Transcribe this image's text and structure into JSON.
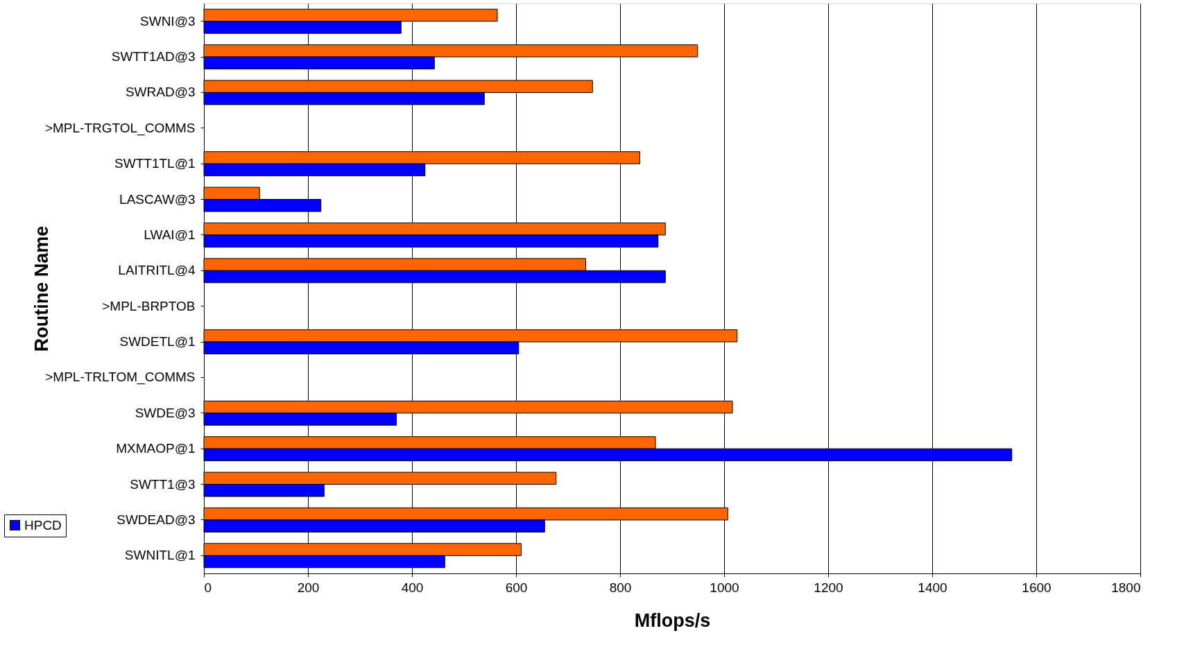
{
  "chart_data": {
    "type": "bar",
    "orientation": "horizontal",
    "xlabel": "Mflops/s",
    "ylabel": "Routine Name",
    "categories": [
      "SWNI@3",
      "SWTT1AD@3",
      "SWRAD@3",
      ">MPL-TRGTOL_COMMS",
      "SWTT1TL@1",
      "LASCAW@3",
      "LWAI@1",
      "LAITRITL@4",
      ">MPL-BRPTOB",
      "SWDETL@1",
      ">MPL-TRLTOM_COMMS",
      "SWDE@3",
      "MXMAOP@1",
      "SWTT1@3",
      "SWDEAD@3",
      "SWNITL@1"
    ],
    "series": [
      {
        "color": "#ff6600",
        "values": [
          564,
          949,
          747,
          null,
          838,
          107,
          887,
          734,
          null,
          1025,
          null,
          1016,
          868,
          677,
          1007,
          610
        ]
      },
      {
        "name": "HPCD",
        "color": "#0000ff",
        "values": [
          379,
          443,
          539,
          null,
          425,
          225,
          873,
          887,
          null,
          605,
          null,
          370,
          1553,
          231,
          655,
          463
        ]
      }
    ],
    "xlim": [
      0,
      1800
    ],
    "xticks": [
      0,
      200,
      400,
      600,
      800,
      1000,
      1200,
      1400,
      1600,
      1800
    ],
    "grid": "x",
    "legend": "bottom left"
  }
}
